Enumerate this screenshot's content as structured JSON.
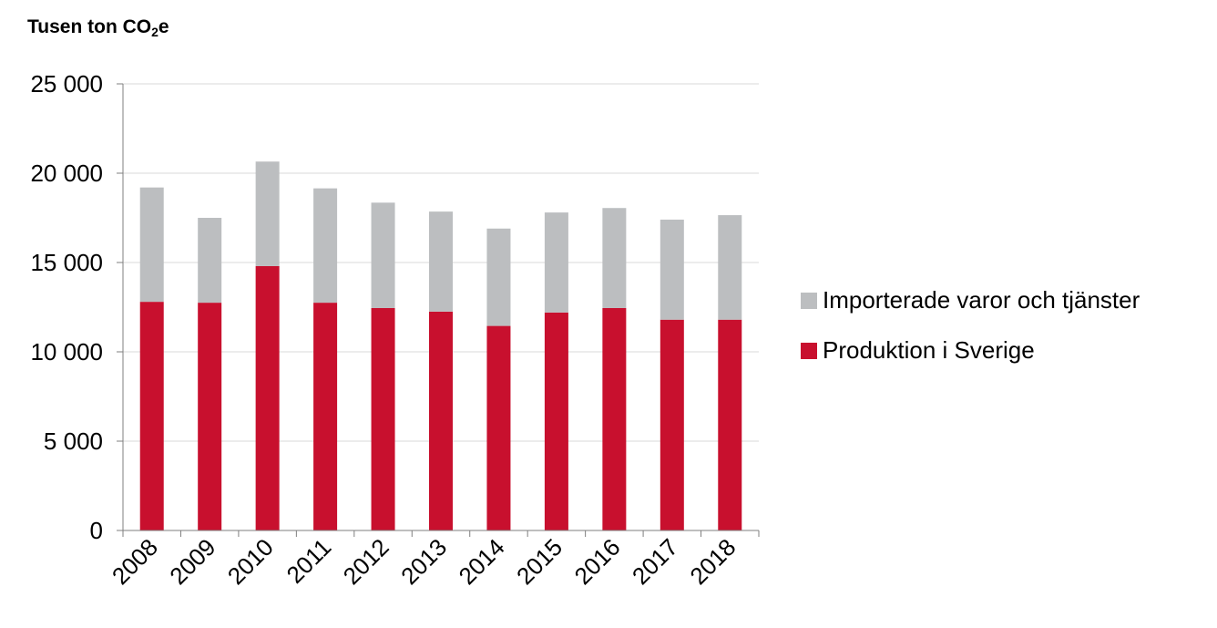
{
  "chart_data": {
    "type": "bar",
    "stacked": true,
    "ylabel_main": "Tusen ton CO",
    "ylabel_sub": "2",
    "ylabel_tail": "e",
    "categories": [
      "2008",
      "2009",
      "2010",
      "2011",
      "2012",
      "2013",
      "2014",
      "2015",
      "2016",
      "2017",
      "2018"
    ],
    "series": [
      {
        "name": "Produktion i Sverige",
        "color": "#c8102e",
        "values": [
          12800,
          12750,
          14800,
          12750,
          12450,
          12250,
          11450,
          12200,
          12450,
          11800,
          11800
        ]
      },
      {
        "name": "Importerade varor och tjänster",
        "color": "#bcbec0",
        "values": [
          6400,
          4750,
          5850,
          6400,
          5900,
          5600,
          5450,
          5600,
          5600,
          5600,
          5850
        ]
      }
    ],
    "ylim": [
      0,
      25000
    ],
    "yticks": [
      "0",
      "5 000",
      "10 000",
      "15 000",
      "20 000",
      "25 000"
    ],
    "ytick_values": [
      0,
      5000,
      10000,
      15000,
      20000,
      25000
    ],
    "grid": true,
    "legend_position": "right"
  }
}
